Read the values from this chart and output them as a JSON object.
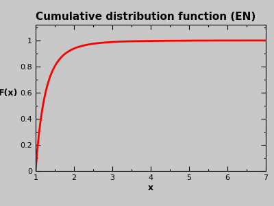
{
  "title": "Cumulative distribution function (EN)",
  "xlabel": "x",
  "ylabel": "F(x)",
  "xmin": 1,
  "xmax": 7,
  "ymin": 0,
  "ymax": 1.12,
  "yticks": [
    0,
    0.2,
    0.4,
    0.6,
    0.8,
    1
  ],
  "xticks": [
    1,
    2,
    3,
    4,
    5,
    6,
    7
  ],
  "line_color": "#ff0000",
  "line_width": 2.0,
  "background_color": "#c8c8c8",
  "pareto_alpha": 4.0,
  "pareto_xm": 1.0,
  "title_fontsize": 11,
  "label_fontsize": 9,
  "tick_fontsize": 8
}
